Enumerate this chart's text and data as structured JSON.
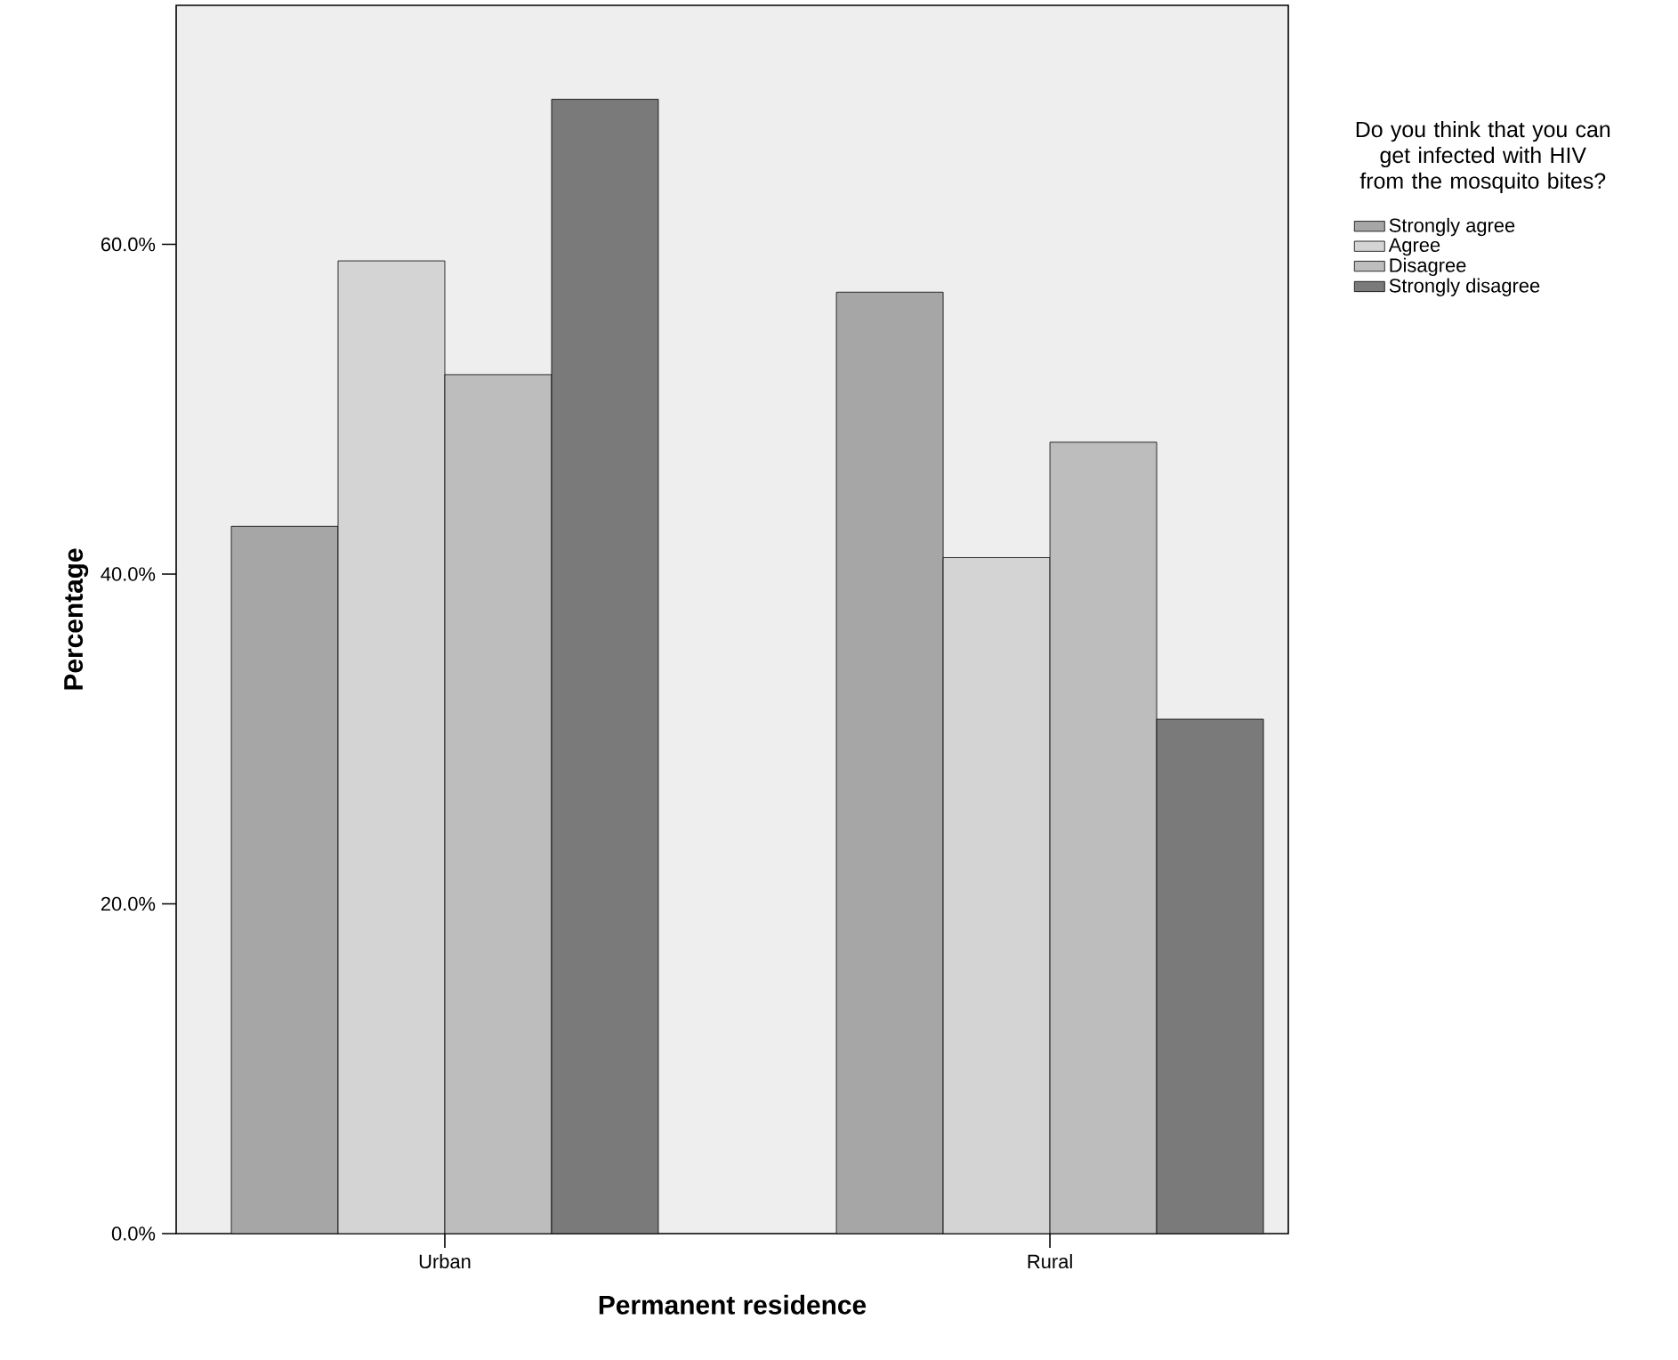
{
  "chart_data": {
    "type": "bar",
    "xlabel": "Permanent residence",
    "ylabel": "Percentage",
    "legend_title": "Do you think that you can get infected with HIV from the mosquito bites?",
    "categories": [
      "Urban",
      "Rural"
    ],
    "series": [
      {
        "name": "Strongly agree",
        "color": "#a6a6a6",
        "values": [
          42.9,
          57.1
        ]
      },
      {
        "name": "Agree",
        "color": "#d4d4d4",
        "values": [
          59.0,
          41.0
        ]
      },
      {
        "name": "Disagree",
        "color": "#bdbdbd",
        "values": [
          52.1,
          48.0
        ]
      },
      {
        "name": "Strongly disagree",
        "color": "#7a7a7a",
        "values": [
          68.8,
          31.2
        ]
      }
    ],
    "ylim": [
      0,
      74.5
    ],
    "yticks": [
      {
        "value": 0,
        "label": "0.0%"
      },
      {
        "value": 20,
        "label": "20.0%"
      },
      {
        "value": 40,
        "label": "40.0%"
      },
      {
        "value": 60,
        "label": "60.0%"
      }
    ],
    "legend": "right"
  }
}
